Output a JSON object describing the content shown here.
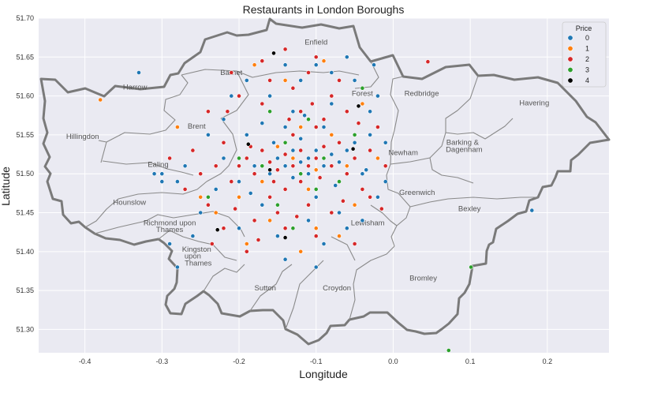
{
  "chart_data": {
    "type": "scatter",
    "title": "Restaurants in London Boroughs",
    "xlabel": "Longitude",
    "ylabel": "Latitude",
    "xlim": [
      -0.46,
      0.28
    ],
    "ylim": [
      51.27,
      51.7
    ],
    "xticks": [
      -0.4,
      -0.3,
      -0.2,
      -0.1,
      0.0,
      0.1,
      0.2
    ],
    "xtick_labels": [
      "-0.4",
      "-0.3",
      "-0.2",
      "-0.1",
      "0.0",
      "0.1",
      "0.2"
    ],
    "yticks": [
      51.3,
      51.35,
      51.4,
      51.45,
      51.5,
      51.55,
      51.6,
      51.65,
      51.7
    ],
    "ytick_labels": [
      "51.30",
      "51.35",
      "51.40",
      "51.45",
      "51.50",
      "51.55",
      "51.60",
      "51.65",
      "51.70"
    ],
    "grid": true,
    "background": "#eaeaf2",
    "legend": {
      "title": "Price",
      "placement": "top-right",
      "entries": [
        {
          "label": "0",
          "color": "#1f77b4"
        },
        {
          "label": "1",
          "color": "#ff7f0e"
        },
        {
          "label": "2",
          "color": "#d62728"
        },
        {
          "label": "3",
          "color": "#2ca02c"
        },
        {
          "label": "4",
          "color": "#000000"
        }
      ]
    },
    "background_map_labels": [
      {
        "text": "Enfield",
        "lon": -0.1,
        "lat": 51.666
      },
      {
        "text": "Barnet",
        "lon": -0.21,
        "lat": 51.627
      },
      {
        "text": "Harrow",
        "lon": -0.335,
        "lat": 51.608
      },
      {
        "text": "Redbridge",
        "lon": 0.037,
        "lat": 51.6
      },
      {
        "text": "Havering",
        "lon": 0.183,
        "lat": 51.588
      },
      {
        "text": "Forest",
        "lon": -0.04,
        "lat": 51.6
      },
      {
        "text": "Hillingdon",
        "lon": -0.403,
        "lat": 51.545
      },
      {
        "text": "Brent",
        "lon": -0.255,
        "lat": 51.558
      },
      {
        "text": "Barking &",
        "lon": 0.09,
        "lat": 51.537
      },
      {
        "text": "Dagenham",
        "lon": 0.092,
        "lat": 51.528
      },
      {
        "text": "Newham",
        "lon": 0.013,
        "lat": 51.524
      },
      {
        "text": "Ealing",
        "lon": -0.305,
        "lat": 51.509
      },
      {
        "text": "Greenwich",
        "lon": 0.031,
        "lat": 51.473
      },
      {
        "text": "Hounslow",
        "lon": -0.342,
        "lat": 51.46
      },
      {
        "text": "Bexley",
        "lon": 0.099,
        "lat": 51.452
      },
      {
        "text": "Richmond upon",
        "lon": -0.29,
        "lat": 51.434
      },
      {
        "text": "Thames",
        "lon": -0.29,
        "lat": 51.425
      },
      {
        "text": "Lewisham",
        "lon": -0.033,
        "lat": 51.434
      },
      {
        "text": "Kingston",
        "lon": -0.255,
        "lat": 51.4
      },
      {
        "text": "upon",
        "lon": -0.26,
        "lat": 51.391
      },
      {
        "text": "Thames",
        "lon": -0.253,
        "lat": 51.382
      },
      {
        "text": "Bromley",
        "lon": 0.039,
        "lat": 51.363
      },
      {
        "text": "Sutton",
        "lon": -0.166,
        "lat": 51.35
      },
      {
        "text": "Croydon",
        "lon": -0.073,
        "lat": 51.35
      }
    ],
    "series": [
      {
        "name": "0",
        "color": "#1f77b4",
        "points": [
          [
            -0.12,
            51.515
          ],
          [
            -0.11,
            51.52
          ],
          [
            -0.13,
            51.53
          ],
          [
            -0.14,
            51.51
          ],
          [
            -0.09,
            51.51
          ],
          [
            -0.1,
            51.53
          ],
          [
            -0.15,
            51.52
          ],
          [
            -0.08,
            51.525
          ],
          [
            -0.16,
            51.5
          ],
          [
            -0.07,
            51.515
          ],
          [
            -0.12,
            51.545
          ],
          [
            -0.13,
            51.495
          ],
          [
            -0.11,
            51.5
          ],
          [
            -0.06,
            51.53
          ],
          [
            -0.18,
            51.51
          ],
          [
            -0.05,
            51.54
          ],
          [
            -0.14,
            51.56
          ],
          [
            -0.09,
            51.56
          ],
          [
            -0.1,
            51.47
          ],
          [
            -0.2,
            51.49
          ],
          [
            -0.03,
            51.55
          ],
          [
            -0.17,
            51.46
          ],
          [
            -0.22,
            51.52
          ],
          [
            -0.04,
            51.5
          ],
          [
            -0.13,
            51.58
          ],
          [
            -0.08,
            51.59
          ],
          [
            -0.16,
            51.6
          ],
          [
            -0.19,
            51.55
          ],
          [
            -0.23,
            51.48
          ],
          [
            -0.02,
            51.47
          ],
          [
            -0.11,
            51.44
          ],
          [
            -0.06,
            51.43
          ],
          [
            -0.09,
            51.41
          ],
          [
            -0.15,
            51.42
          ],
          [
            -0.2,
            51.43
          ],
          [
            -0.25,
            51.5
          ],
          [
            -0.27,
            51.51
          ],
          [
            -0.24,
            51.55
          ],
          [
            -0.21,
            51.6
          ],
          [
            -0.12,
            51.62
          ],
          [
            -0.08,
            51.63
          ],
          [
            -0.05,
            51.62
          ],
          [
            -0.02,
            51.6
          ],
          [
            -0.03,
            51.58
          ],
          [
            -0.31,
            51.5
          ],
          [
            -0.28,
            51.49
          ],
          [
            -0.26,
            51.42
          ],
          [
            -0.04,
            51.44
          ],
          [
            -0.01,
            51.49
          ],
          [
            -0.33,
            51.63
          ],
          [
            0.18,
            51.453
          ],
          [
            -0.025,
            51.64
          ],
          [
            -0.3,
            51.5
          ],
          [
            -0.14,
            51.64
          ],
          [
            -0.1,
            51.64
          ],
          [
            -0.06,
            51.65
          ],
          [
            -0.19,
            51.62
          ],
          [
            -0.22,
            51.57
          ],
          [
            -0.01,
            51.54
          ],
          [
            -0.07,
            51.45
          ],
          [
            -0.14,
            51.39
          ],
          [
            -0.1,
            51.38
          ],
          [
            -0.3,
            51.49
          ],
          [
            -0.25,
            51.45
          ],
          [
            -0.29,
            51.41
          ],
          [
            -0.28,
            51.38
          ],
          [
            -0.17,
            51.565
          ],
          [
            -0.035,
            51.505
          ],
          [
            -0.115,
            51.575
          ],
          [
            -0.155,
            51.54
          ],
          [
            -0.185,
            51.475
          ],
          [
            -0.075,
            51.485
          ]
        ]
      },
      {
        "name": "1",
        "color": "#ff7f0e",
        "points": [
          [
            -0.38,
            51.595
          ],
          [
            -0.13,
            51.52
          ],
          [
            -0.1,
            51.505
          ],
          [
            -0.15,
            51.535
          ],
          [
            -0.08,
            51.55
          ],
          [
            -0.17,
            51.49
          ],
          [
            -0.06,
            51.51
          ],
          [
            -0.2,
            51.47
          ],
          [
            -0.11,
            51.48
          ],
          [
            -0.12,
            51.56
          ],
          [
            -0.23,
            51.45
          ],
          [
            -0.02,
            51.52
          ],
          [
            -0.19,
            51.41
          ],
          [
            -0.12,
            51.4
          ],
          [
            -0.07,
            51.42
          ],
          [
            -0.04,
            51.59
          ],
          [
            -0.14,
            51.62
          ],
          [
            -0.09,
            51.645
          ],
          [
            -0.28,
            51.56
          ],
          [
            -0.25,
            51.47
          ],
          [
            -0.18,
            51.64
          ],
          [
            -0.05,
            51.46
          ],
          [
            -0.16,
            51.44
          ],
          [
            -0.1,
            51.43
          ]
        ]
      },
      {
        "name": "2",
        "color": "#d62728",
        "points": [
          [
            -0.13,
            51.51
          ],
          [
            -0.14,
            51.525
          ],
          [
            -0.12,
            51.53
          ],
          [
            -0.11,
            51.51
          ],
          [
            -0.15,
            51.505
          ],
          [
            -0.1,
            51.52
          ],
          [
            -0.09,
            51.535
          ],
          [
            -0.16,
            51.515
          ],
          [
            -0.17,
            51.53
          ],
          [
            -0.08,
            51.51
          ],
          [
            -0.12,
            51.49
          ],
          [
            -0.14,
            51.48
          ],
          [
            -0.18,
            51.5
          ],
          [
            -0.19,
            51.52
          ],
          [
            -0.07,
            51.54
          ],
          [
            -0.13,
            51.55
          ],
          [
            -0.1,
            51.56
          ],
          [
            -0.2,
            51.51
          ],
          [
            -0.21,
            51.49
          ],
          [
            -0.16,
            51.47
          ],
          [
            -0.06,
            51.5
          ],
          [
            -0.05,
            51.52
          ],
          [
            -0.11,
            51.46
          ],
          [
            -0.15,
            51.45
          ],
          [
            -0.22,
            51.54
          ],
          [
            -0.09,
            51.57
          ],
          [
            -0.12,
            51.58
          ],
          [
            -0.17,
            51.59
          ],
          [
            -0.23,
            51.51
          ],
          [
            -0.24,
            51.46
          ],
          [
            -0.04,
            51.48
          ],
          [
            -0.03,
            51.53
          ],
          [
            -0.14,
            51.43
          ],
          [
            -0.1,
            51.42
          ],
          [
            -0.18,
            51.44
          ],
          [
            -0.2,
            51.6
          ],
          [
            -0.13,
            51.61
          ],
          [
            -0.08,
            51.6
          ],
          [
            -0.06,
            51.58
          ],
          [
            -0.26,
            51.53
          ],
          [
            -0.27,
            51.48
          ],
          [
            -0.01,
            51.51
          ],
          [
            -0.02,
            51.56
          ],
          [
            0.045,
            51.644
          ],
          [
            -0.16,
            51.62
          ],
          [
            -0.11,
            51.63
          ],
          [
            -0.22,
            51.43
          ],
          [
            -0.08,
            51.45
          ],
          [
            -0.05,
            51.41
          ],
          [
            -0.19,
            51.4
          ],
          [
            -0.25,
            51.5
          ],
          [
            -0.29,
            51.52
          ],
          [
            -0.24,
            51.58
          ],
          [
            -0.14,
            51.66
          ],
          [
            -0.1,
            51.65
          ],
          [
            -0.17,
            51.645
          ],
          [
            -0.21,
            51.63
          ],
          [
            -0.07,
            51.62
          ],
          [
            -0.03,
            51.47
          ],
          [
            -0.015,
            51.455
          ],
          [
            -0.135,
            51.57
          ],
          [
            -0.155,
            51.49
          ],
          [
            -0.095,
            51.495
          ],
          [
            -0.185,
            51.535
          ],
          [
            -0.205,
            51.455
          ],
          [
            -0.125,
            51.445
          ],
          [
            -0.065,
            51.465
          ],
          [
            -0.045,
            51.565
          ],
          [
            -0.175,
            51.415
          ],
          [
            -0.235,
            51.41
          ],
          [
            -0.215,
            51.58
          ],
          [
            -0.105,
            51.59
          ]
        ]
      },
      {
        "name": "3",
        "color": "#2ca02c",
        "points": [
          [
            -0.12,
            51.5
          ],
          [
            -0.14,
            51.54
          ],
          [
            -0.09,
            51.52
          ],
          [
            -0.17,
            51.51
          ],
          [
            -0.07,
            51.49
          ],
          [
            -0.11,
            51.57
          ],
          [
            -0.2,
            51.52
          ],
          [
            -0.05,
            51.55
          ],
          [
            -0.15,
            51.46
          ],
          [
            -0.13,
            51.43
          ],
          [
            -0.24,
            51.47
          ],
          [
            -0.16,
            51.58
          ],
          [
            -0.04,
            51.61
          ],
          [
            0.072,
            51.273
          ],
          [
            0.101,
            51.38
          ],
          [
            -0.1,
            51.48
          ]
        ]
      },
      {
        "name": "4",
        "color": "#000000",
        "points": [
          [
            -0.155,
            51.655
          ],
          [
            -0.045,
            51.587
          ],
          [
            -0.188,
            51.538
          ],
          [
            -0.16,
            51.505
          ],
          [
            -0.052,
            51.532
          ],
          [
            -0.228,
            51.428
          ],
          [
            -0.14,
            51.418
          ]
        ]
      }
    ]
  }
}
